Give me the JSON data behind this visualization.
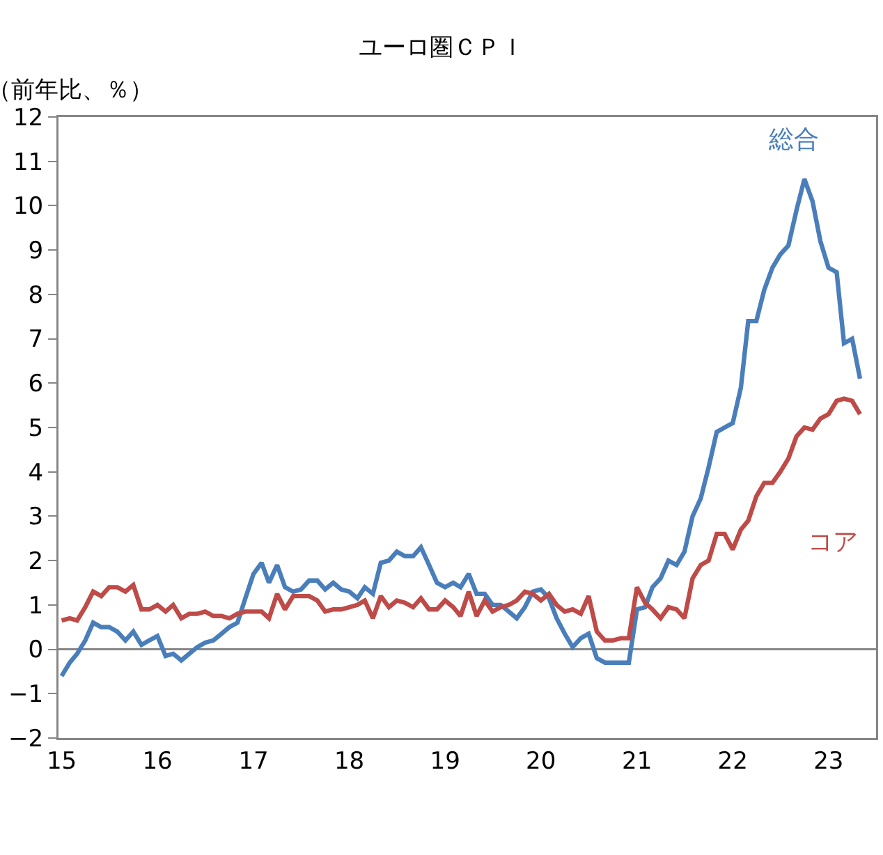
{
  "chart_data": {
    "type": "line",
    "title": "ユーロ圏ＣＰＩ",
    "ylabel": "（前年比、％）",
    "x": [
      "2015-01",
      "2015-02",
      "2015-03",
      "2015-04",
      "2015-05",
      "2015-06",
      "2015-07",
      "2015-08",
      "2015-09",
      "2015-10",
      "2015-11",
      "2015-12",
      "2016-01",
      "2016-02",
      "2016-03",
      "2016-04",
      "2016-05",
      "2016-06",
      "2016-07",
      "2016-08",
      "2016-09",
      "2016-10",
      "2016-11",
      "2016-12",
      "2017-01",
      "2017-02",
      "2017-03",
      "2017-04",
      "2017-05",
      "2017-06",
      "2017-07",
      "2017-08",
      "2017-09",
      "2017-10",
      "2017-11",
      "2017-12",
      "2018-01",
      "2018-02",
      "2018-03",
      "2018-04",
      "2018-05",
      "2018-06",
      "2018-07",
      "2018-08",
      "2018-09",
      "2018-10",
      "2018-11",
      "2018-12",
      "2019-01",
      "2019-02",
      "2019-03",
      "2019-04",
      "2019-05",
      "2019-06",
      "2019-07",
      "2019-08",
      "2019-09",
      "2019-10",
      "2019-11",
      "2019-12",
      "2020-01",
      "2020-02",
      "2020-03",
      "2020-04",
      "2020-05",
      "2020-06",
      "2020-07",
      "2020-08",
      "2020-09",
      "2020-10",
      "2020-11",
      "2020-12",
      "2021-01",
      "2021-02",
      "2021-03",
      "2021-04",
      "2021-05",
      "2021-06",
      "2021-07",
      "2021-08",
      "2021-09",
      "2021-10",
      "2021-11",
      "2021-12",
      "2022-01",
      "2022-02",
      "2022-03",
      "2022-04",
      "2022-05",
      "2022-06",
      "2022-07",
      "2022-08",
      "2022-09",
      "2022-10",
      "2022-11",
      "2022-12",
      "2023-01",
      "2023-02",
      "2023-03",
      "2023-04",
      "2023-05"
    ],
    "series": [
      {
        "name": "総合",
        "color": "#4a7ebb",
        "values": [
          -0.6,
          -0.3,
          -0.1,
          0.2,
          0.6,
          0.5,
          0.5,
          0.4,
          0.2,
          0.4,
          0.1,
          0.2,
          0.3,
          -0.15,
          -0.1,
          -0.25,
          -0.1,
          0.05,
          0.15,
          0.2,
          0.35,
          0.5,
          0.6,
          1.15,
          1.7,
          1.95,
          1.5,
          1.9,
          1.4,
          1.3,
          1.35,
          1.55,
          1.55,
          1.35,
          1.5,
          1.35,
          1.3,
          1.15,
          1.4,
          1.25,
          1.95,
          2.0,
          2.2,
          2.1,
          2.1,
          2.3,
          1.9,
          1.5,
          1.4,
          1.5,
          1.4,
          1.7,
          1.25,
          1.25,
          1.0,
          1.0,
          0.85,
          0.7,
          0.95,
          1.3,
          1.35,
          1.15,
          0.7,
          0.35,
          0.05,
          0.25,
          0.35,
          -0.2,
          -0.3,
          -0.3,
          -0.3,
          -0.3,
          0.9,
          0.95,
          1.4,
          1.6,
          2.0,
          1.9,
          2.2,
          3.0,
          3.4,
          4.1,
          4.9,
          5.0,
          5.1,
          5.9,
          7.4,
          7.4,
          8.1,
          8.6,
          8.9,
          9.1,
          9.9,
          10.6,
          10.1,
          9.2,
          8.6,
          8.5,
          6.9,
          7.0,
          6.1
        ]
      },
      {
        "name": "コア",
        "color": "#be4b48",
        "values": [
          0.65,
          0.7,
          0.65,
          0.95,
          1.3,
          1.2,
          1.4,
          1.4,
          1.3,
          1.45,
          0.9,
          0.9,
          1.0,
          0.85,
          1.0,
          0.7,
          0.8,
          0.8,
          0.85,
          0.75,
          0.75,
          0.7,
          0.8,
          0.85,
          0.85,
          0.85,
          0.7,
          1.25,
          0.9,
          1.2,
          1.2,
          1.2,
          1.1,
          0.85,
          0.9,
          0.9,
          0.95,
          1.0,
          1.1,
          0.7,
          1.2,
          0.95,
          1.1,
          1.05,
          0.95,
          1.15,
          0.9,
          0.9,
          1.1,
          0.95,
          0.75,
          1.3,
          0.75,
          1.1,
          0.85,
          0.95,
          1.0,
          1.1,
          1.3,
          1.25,
          1.1,
          1.25,
          1.0,
          0.85,
          0.9,
          0.8,
          1.2,
          0.4,
          0.2,
          0.2,
          0.25,
          0.25,
          1.4,
          1.05,
          0.9,
          0.7,
          0.95,
          0.9,
          0.7,
          1.6,
          1.9,
          2.0,
          2.6,
          2.6,
          2.25,
          2.7,
          2.9,
          3.45,
          3.75,
          3.75,
          4.0,
          4.3,
          4.8,
          5.0,
          4.95,
          5.2,
          5.3,
          5.6,
          5.65,
          5.6,
          5.3
        ]
      }
    ],
    "xlim": [
      "2014-12-20",
      "2023-07-01"
    ],
    "xticks": [
      {
        "value": "2015-01",
        "label": "15"
      },
      {
        "value": "2016-01",
        "label": "16"
      },
      {
        "value": "2017-01",
        "label": "17"
      },
      {
        "value": "2018-01",
        "label": "18"
      },
      {
        "value": "2019-01",
        "label": "19"
      },
      {
        "value": "2020-01",
        "label": "20"
      },
      {
        "value": "2021-01",
        "label": "21"
      },
      {
        "value": "2022-01",
        "label": "22"
      },
      {
        "value": "2023-01",
        "label": "23"
      }
    ],
    "ylim": [
      -2,
      12
    ],
    "yticks": [
      {
        "value": -2,
        "label": "−2"
      },
      {
        "value": -1,
        "label": "−1"
      },
      0,
      1,
      2,
      3,
      4,
      5,
      6,
      7,
      8,
      9,
      10,
      11,
      12
    ],
    "ref_lines": [
      {
        "axis": "y",
        "value": 0,
        "color": "#868686"
      }
    ],
    "grid": false,
    "legend": false,
    "line_style": "solid"
  }
}
